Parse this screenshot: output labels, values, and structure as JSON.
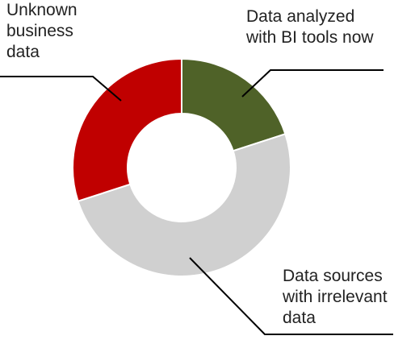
{
  "chart_data": {
    "type": "pie",
    "categories": [
      "Data analyzed\nwith BI tools now",
      "Data sources\nwith irrelevant\ndata",
      "Unknown\nbusiness\ndata"
    ],
    "values": [
      20,
      50,
      30
    ],
    "colors": [
      "#4f6228",
      "#d0d0d0",
      "#c00000"
    ]
  }
}
